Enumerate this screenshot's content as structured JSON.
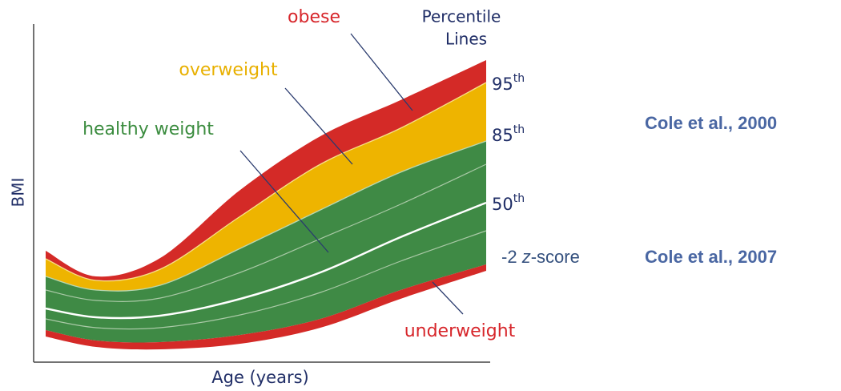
{
  "zones": {
    "obese": "obese",
    "overweight": "overweight",
    "healthy": "healthy weight",
    "underweight": "underweight"
  },
  "percentile_heading": [
    "Percentile",
    "Lines"
  ],
  "percentiles": [
    {
      "number": "95",
      "suffix": "th"
    },
    {
      "number": "85",
      "suffix": "th"
    },
    {
      "number": "50",
      "suffix": "th"
    }
  ],
  "zscore": {
    "number": "-2 ",
    "z": "z",
    "rest": "-score"
  },
  "references": [
    "Cole et al., 2000",
    "Cole et al., 2007"
  ],
  "axes": {
    "y": "BMI",
    "x": "Age (years)"
  }
}
